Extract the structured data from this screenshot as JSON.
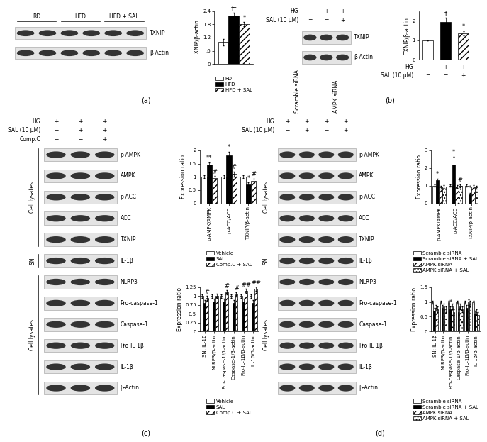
{
  "panel_labels": [
    "(a)",
    "(b)",
    "(c)",
    "(d)"
  ],
  "blots": [
    {
      "groups": [
        "RD",
        "HFD",
        "HFD + SAL"
      ],
      "rows": [
        "TXNIP",
        "β-Actin"
      ]
    },
    {
      "conditions": [
        {
          "label": "HG",
          "values": [
            "−",
            "+",
            "+"
          ]
        },
        {
          "label": "SAL (10 μM)",
          "values": [
            "−",
            "−",
            "+"
          ]
        }
      ],
      "rows": [
        "TXNIP",
        "β-Actin"
      ]
    },
    {
      "conditions": [
        {
          "label": "HG",
          "values": [
            "+",
            "+",
            "+"
          ]
        },
        {
          "label": "SAL (10 μM)",
          "values": [
            "−",
            "+",
            "+"
          ]
        },
        {
          "label": "Comp.C",
          "values": [
            "−",
            "−",
            "+"
          ]
        }
      ],
      "sections": [
        {
          "label": "Cell lysates",
          "rows": [
            "p-AMPK",
            "AMPK",
            "p-ACC",
            "ACC",
            "TXNIP"
          ]
        },
        {
          "label": "SN",
          "rows": [
            "IL-1β"
          ]
        },
        {
          "label": "Cell lysates",
          "rows": [
            "NLRP3",
            "Pro-caspase-1",
            "Caspase-1",
            "Pro-IL-1β",
            "IL-1β",
            "β-Actin"
          ]
        }
      ]
    },
    {
      "groups": [
        "Scramble siRNA",
        "AMPK siRNA"
      ],
      "conditions": [
        {
          "label": "HG",
          "values": [
            "+",
            "+",
            "+",
            "+"
          ]
        },
        {
          "label": "SAL (10 μM)",
          "values": [
            "−",
            "+",
            "−",
            "+"
          ]
        }
      ],
      "sections": [
        {
          "label": "Cell lysates",
          "rows": [
            "p-AMPK",
            "AMPK",
            "p-ACC",
            "ACC",
            "TXNIP"
          ]
        },
        {
          "label": "SN",
          "rows": [
            "IL-1β"
          ]
        },
        {
          "label": "Cell lysates",
          "rows": [
            "NLRP3",
            "Pro-caspase-1",
            "Caspase-1",
            "Pro-IL-1β",
            "IL-1β",
            "β-Actin"
          ]
        }
      ]
    }
  ],
  "chart_data": [
    {
      "type": "bar",
      "y_label": "TXNIP/β-actin",
      "categories": [
        null
      ],
      "series": [
        {
          "name": "RD",
          "color": "#ffffff",
          "values": [
            1.0
          ],
          "errors": [
            0.15
          ]
        },
        {
          "name": "HFD",
          "color": "#000000",
          "values": [
            2.2
          ],
          "errors": [
            0.12
          ]
        },
        {
          "name": "HFD + SAL",
          "color": "#ffffff",
          "values": [
            1.8
          ],
          "errors": [
            0.1
          ]
        }
      ],
      "ylim": [
        0,
        2.4
      ],
      "yticks": [
        0,
        {
          "value": 0.6,
          "label": ".6"
        },
        1.2,
        1.8,
        2.4
      ],
      "annotations": [
        {
          "text": "††",
          "category": 0,
          "series": 1
        },
        {
          "text": "*",
          "category": 0,
          "series": 2
        }
      ],
      "legend": "below"
    },
    {
      "type": "bar",
      "y_label": "TXNIP/β-actin",
      "categories": [
        null,
        null,
        null
      ],
      "values": [
        1,
        1.95,
        1.35
      ],
      "errors": [
        0,
        0.22,
        0.12
      ],
      "colors": [
        "#ffffff",
        "#000000",
        "#ffffff"
      ],
      "ylim": [
        0,
        2.5
      ],
      "yticks": [
        0,
        1,
        2
      ],
      "annotations": [
        {
          "text": "†",
          "category": 1
        },
        {
          "text": "*",
          "category": 2
        }
      ],
      "conditions": [
        {
          "label": "HG",
          "values": [
            "−",
            "+",
            "+"
          ]
        },
        {
          "label": "SAL (10 μM)",
          "values": [
            "−",
            "−",
            "+"
          ]
        }
      ]
    },
    {
      "type": "bar",
      "y_label": "Expression ratio",
      "categories": [
        "p-AMPK/AMPK",
        "p-ACC/ACC",
        "TXNIP/β-actin"
      ],
      "series": [
        {
          "name": "Vehicle",
          "color": "#ffffff",
          "values": [
            1,
            1,
            1
          ],
          "errors": [
            0.05,
            0.05,
            0.05
          ]
        },
        {
          "name": "SAL",
          "color": "#000000",
          "values": [
            1.45,
            1.8,
            0.7
          ],
          "errors": [
            0.1,
            0.15,
            0.08
          ]
        },
        {
          "name": "Comp.C + SAL",
          "color": "#ffffff",
          "values": [
            0.95,
            1.1,
            0.85
          ],
          "errors": [
            0.08,
            0.1,
            0.08
          ]
        }
      ],
      "ylim": [
        0,
        2
      ],
      "yticks": [
        0,
        0.5,
        1,
        1.5,
        2
      ],
      "annotations": [
        {
          "text": "**",
          "category": 0,
          "series": 1
        },
        {
          "text": "#",
          "category": 0,
          "series": 2
        },
        {
          "text": "*",
          "category": 1,
          "series": 1
        },
        {
          "text": "#",
          "category": 1,
          "series": 2
        },
        {
          "text": "*",
          "category": 2,
          "series": 1
        },
        {
          "text": "#",
          "category": 2,
          "series": 2
        }
      ],
      "legend": "below"
    },
    {
      "type": "bar",
      "y_label": "Expression ratio",
      "categories": [
        "SN: IL-1β",
        "NLRP3/β-actin",
        "Pro-caspase-1/β-actin",
        "Caspase-1/β-actin",
        "Pro-IL-1β/β-actin",
        "IL-1β/β-actin"
      ],
      "series": [
        {
          "name": "Vehicle",
          "color": "#ffffff",
          "values": [
            1,
            1,
            1,
            1,
            1,
            1
          ],
          "errors": [
            0.05,
            0.05,
            0.05,
            0.05,
            0.05,
            0.05
          ]
        },
        {
          "name": "SAL",
          "color": "#000000",
          "values": [
            0.8,
            0.85,
            0.85,
            0.8,
            0.85,
            0.8
          ],
          "errors": [
            0.08,
            0.08,
            0.08,
            0.08,
            0.08,
            0.08
          ]
        },
        {
          "name": "Comp.C + SAL",
          "color": "#ffffff",
          "values": [
            0.95,
            1.0,
            1.1,
            1.05,
            1.15,
            1.2
          ],
          "errors": [
            0.06,
            0.06,
            0.06,
            0.06,
            0.06,
            0.06
          ]
        }
      ],
      "ylim": [
        0,
        1.25
      ],
      "yticks": [
        0,
        0.25,
        0.5,
        0.75,
        1,
        1.25
      ],
      "annotations": [
        {
          "text": "#",
          "category": 0,
          "series": 2
        },
        {
          "text": "#",
          "category": 2,
          "series": 2
        },
        {
          "text": "#",
          "category": 3,
          "series": 2
        },
        {
          "text": "##",
          "category": 4,
          "series": 2
        },
        {
          "text": "##",
          "category": 5,
          "series": 2
        }
      ],
      "legend": "below"
    },
    {
      "type": "bar",
      "y_label": "Expression ratio",
      "categories": [
        "p-AMPK/AMPK",
        "p-ACC/ACC",
        "TXNIP/β-actin"
      ],
      "series": [
        {
          "name": "Scramble siRNA",
          "color": "#ffffff",
          "values": [
            1,
            1,
            1
          ],
          "errors": [
            0.05,
            0.05,
            0.05
          ]
        },
        {
          "name": "Scramble siRNA + SAL",
          "color": "#000000",
          "values": [
            1.3,
            2.2,
            0.5
          ],
          "errors": [
            0.1,
            0.45,
            0.1
          ]
        },
        {
          "name": "AMPK siRNA",
          "color": "#ffffff",
          "values": [
            0.9,
            0.95,
            0.95
          ],
          "errors": [
            0.08,
            0.08,
            0.08
          ]
        },
        {
          "name": "AMPK siRNA + SAL",
          "color": "#ffffff",
          "values": [
            0.95,
            1.0,
            0.9
          ],
          "errors": [
            0.08,
            0.08,
            0.08
          ]
        }
      ],
      "ylim": [
        0,
        3
      ],
      "yticks": [
        0,
        1,
        2,
        3
      ],
      "annotations": [
        {
          "text": "*",
          "category": 0,
          "series": 1
        },
        {
          "text": "*",
          "category": 1,
          "series": 1
        },
        {
          "text": "#",
          "category": 1,
          "series": 3
        },
        {
          "text": "*",
          "category": 2,
          "series": 1
        }
      ],
      "legend": "below"
    },
    {
      "type": "bar",
      "y_label": "Expression ratio",
      "categories": [
        "SN: IL-1β",
        "NLRP3/β-actin",
        "Pro-caspase-1/β-actin",
        "Caspase-1/β-actin",
        "Pro-IL-1β/β-actin",
        "IL-1β/β-actin"
      ],
      "series": [
        {
          "name": "Scramble siRNA",
          "color": "#ffffff",
          "values": [
            1,
            1,
            1,
            1,
            1,
            1
          ],
          "errors": [
            0.05,
            0.05,
            0.05,
            0.05,
            0.05,
            0.05
          ]
        },
        {
          "name": "Scramble siRNA + SAL",
          "color": "#000000",
          "values": [
            0.7,
            0.8,
            0.75,
            0.65,
            0.8,
            0.6
          ],
          "errors": [
            0.1,
            0.1,
            0.1,
            0.1,
            0.1,
            0.1
          ]
        },
        {
          "name": "AMPK siRNA",
          "color": "#ffffff",
          "values": [
            0.8,
            0.85,
            0.85,
            0.85,
            1.0,
            0.65
          ],
          "errors": [
            0.1,
            0.1,
            0.1,
            0.1,
            0.1,
            0.1
          ]
        },
        {
          "name": "AMPK siRNA + SAL",
          "color": "#ffffff",
          "values": [
            0.75,
            0.75,
            0.65,
            0.75,
            0.95,
            0.55
          ],
          "errors": [
            0.1,
            0.1,
            0.1,
            0.1,
            0.1,
            0.1
          ]
        }
      ],
      "ylim": [
        0,
        1.5
      ],
      "yticks": [
        0,
        0.5,
        1,
        1.5
      ],
      "annotations": [
        {
          "text": "*",
          "category": 2,
          "series": 1
        }
      ],
      "legend": "below"
    }
  ]
}
